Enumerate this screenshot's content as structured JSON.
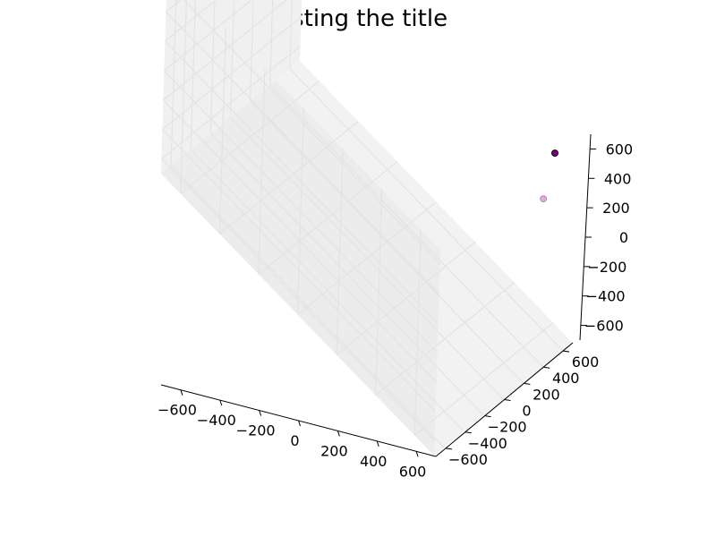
{
  "chart_data": {
    "type": "scatter",
    "title": "testing the title",
    "projection": "3d",
    "xlabel": "",
    "ylabel": "",
    "zlabel": "",
    "xlim": [
      -700,
      700
    ],
    "ylim": [
      -700,
      700
    ],
    "zlim": [
      -700,
      700
    ],
    "grid": true,
    "x_ticks": [
      "−600",
      "−400",
      "−200",
      "0",
      "200",
      "400",
      "600"
    ],
    "y_ticks": [
      "−600",
      "−400",
      "−200",
      "0",
      "200",
      "400",
      "600"
    ],
    "z_ticks": [
      "−600",
      "−400",
      "−200",
      "0",
      "200",
      "400",
      "600"
    ],
    "points": [
      {
        "x": 650,
        "y": 650,
        "z": 600,
        "color": "#800080"
      },
      {
        "x": 600,
        "y": 600,
        "z": 300,
        "color": "#800080",
        "depth_faded": true
      }
    ],
    "colors": {
      "pane": "#f2f2f2",
      "grid": "#e6e6e6",
      "marker": "#800080"
    }
  }
}
